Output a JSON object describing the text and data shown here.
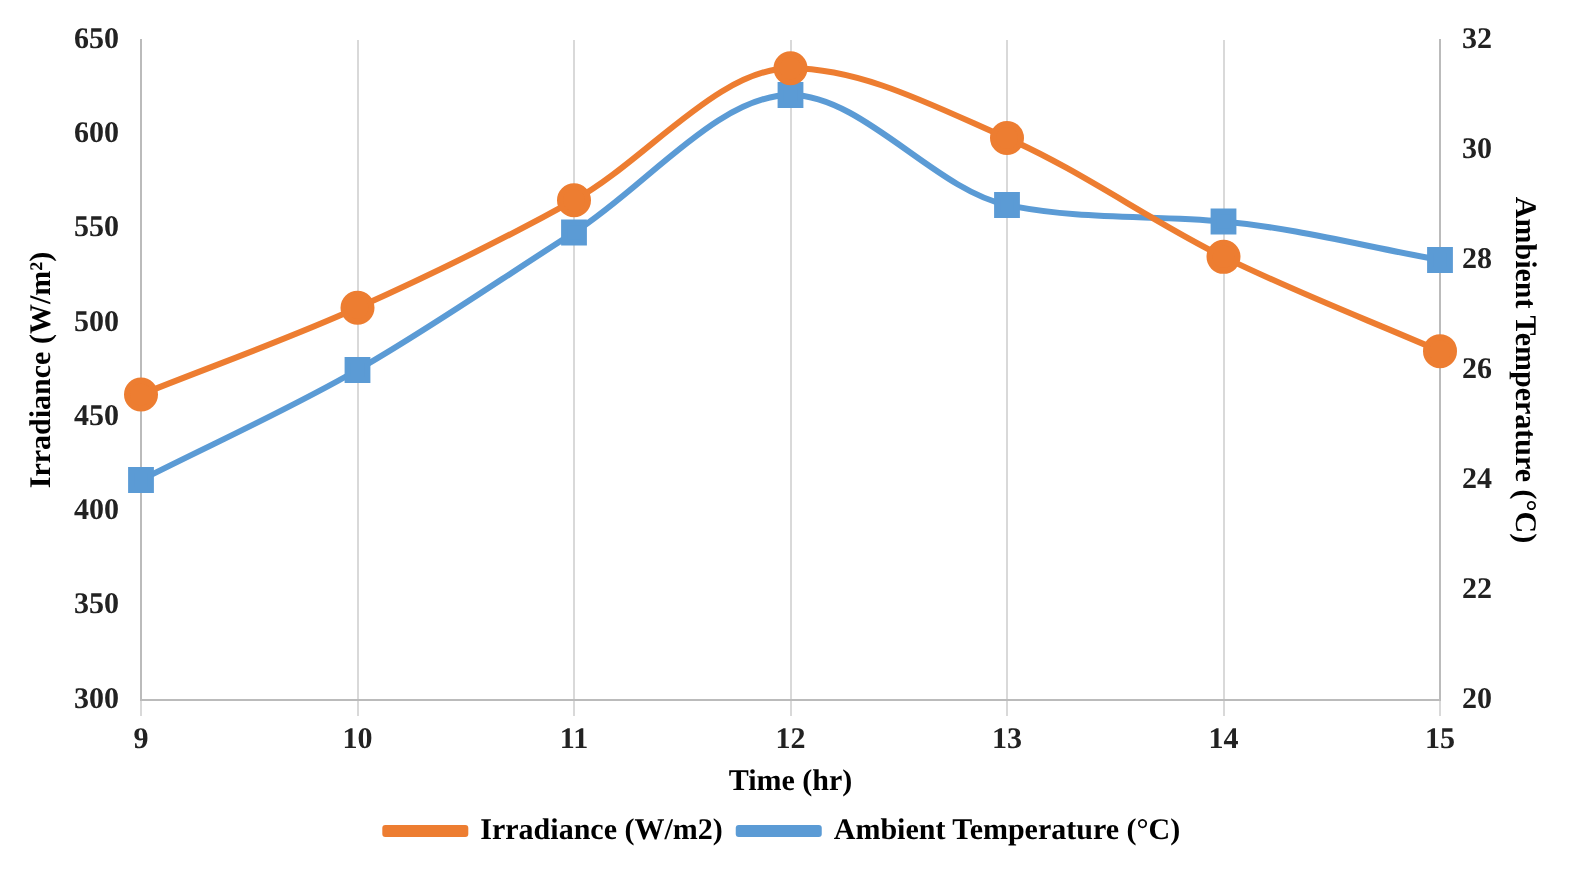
{
  "chart_data": {
    "type": "line",
    "xlabel": "Time (hr)",
    "ylabel": "Irradiance (W/m²)",
    "y2label": "Ambient Temperature (°C)",
    "x": [
      9,
      10,
      11,
      12,
      13,
      14,
      15
    ],
    "xlim": [
      9,
      15
    ],
    "xticks": [
      9,
      10,
      11,
      12,
      13,
      14,
      15
    ],
    "ylim": [
      300,
      650
    ],
    "yticks": [
      300,
      350,
      400,
      450,
      500,
      550,
      600,
      650
    ],
    "y2lim": [
      20,
      32
    ],
    "y2ticks": [
      20,
      22,
      24,
      26,
      28,
      30,
      32
    ],
    "grid": "x",
    "legend": "bottom",
    "series": [
      {
        "name": "Irradiance (W/m2)",
        "color": "#ed7d31",
        "marker": "circle",
        "values": [
          462,
          508,
          565,
          635,
          598,
          535,
          485
        ]
      },
      {
        "name": "Ambient Temperature (°C)",
        "color": "#5b9bd5",
        "marker": "square",
        "axis": "y2",
        "values": [
          24,
          26,
          28.5,
          31,
          29,
          28.7,
          28
        ]
      }
    ]
  }
}
